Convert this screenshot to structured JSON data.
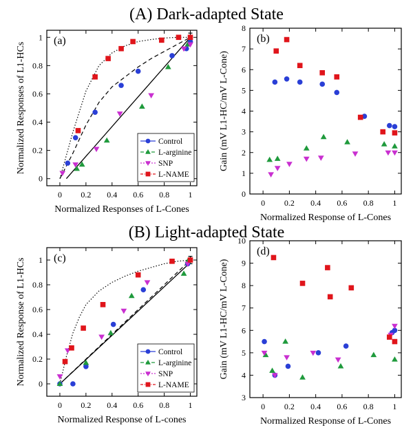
{
  "sections": [
    {
      "title": "(A) Dark-adapted State"
    },
    {
      "title": "(B) Light-adapted State"
    }
  ],
  "colors": {
    "control": "#2a3fd6",
    "larginine": "#1f9a3c",
    "snp": "#c92fd0",
    "lname": "#e0151b"
  },
  "chart_data": [
    {
      "type": "scatter",
      "panel_label": "(a)",
      "xlabel": "Normalized Responses of L-Cones",
      "ylabel": "Normalized Responses of L1-HCs",
      "xlim": [
        -0.1,
        1.05
      ],
      "ylim": [
        -0.05,
        1.05
      ],
      "xticks": [
        0,
        0.2,
        0.4,
        0.6,
        0.8,
        1
      ],
      "xtick_labels": [
        "0",
        "0.2",
        "0.4",
        "0.6",
        "0.8",
        "1"
      ],
      "yticks": [
        0,
        0.2,
        0.4,
        0.6,
        0.8,
        1
      ],
      "ytick_labels": [
        "0",
        "0.2",
        "0.4",
        "0.6",
        "0.8",
        "1"
      ],
      "grid": false,
      "legend": "bottom-right",
      "series": [
        {
          "name": "Control",
          "marker": "circle",
          "color": "#2a3fd6",
          "x": [
            0.06,
            0.12,
            0.27,
            0.47,
            0.6,
            0.86,
            0.97,
            1.0
          ],
          "y": [
            0.11,
            0.29,
            0.47,
            0.66,
            0.76,
            0.87,
            0.92,
            0.97
          ]
        },
        {
          "name": "L-arginine",
          "marker": "triangle-up",
          "color": "#1f9a3c",
          "x": [
            0.13,
            0.17,
            0.36,
            0.63,
            0.83,
            0.98
          ],
          "y": [
            0.07,
            0.1,
            0.27,
            0.51,
            0.79,
            0.95
          ]
        },
        {
          "name": "SNP",
          "marker": "triangle-down",
          "color": "#c92fd0",
          "x": [
            0.02,
            0.12,
            0.28,
            0.46,
            0.7,
            0.95,
            1.0
          ],
          "y": [
            0.04,
            0.1,
            0.21,
            0.46,
            0.59,
            0.92,
            0.95
          ]
        },
        {
          "name": "L-NAME",
          "marker": "square",
          "color": "#e0151b",
          "x": [
            0.14,
            0.27,
            0.37,
            0.47,
            0.56,
            0.78,
            0.91,
            1.0
          ],
          "y": [
            0.34,
            0.72,
            0.85,
            0.92,
            0.97,
            0.98,
            1.0,
            1.0
          ]
        }
      ],
      "fits": [
        {
          "style": "dotted",
          "x": [
            0.0,
            0.1,
            0.2,
            0.3,
            0.4,
            0.5,
            0.6,
            0.7,
            0.8,
            0.9,
            1.0
          ],
          "y": [
            0.0,
            0.33,
            0.62,
            0.8,
            0.89,
            0.94,
            0.97,
            0.985,
            0.995,
            1.0,
            1.0
          ]
        },
        {
          "style": "dashed",
          "x": [
            0.0,
            0.1,
            0.2,
            0.3,
            0.4,
            0.5,
            0.6,
            0.7,
            0.8,
            0.9,
            1.0
          ],
          "y": [
            0.0,
            0.18,
            0.38,
            0.54,
            0.65,
            0.72,
            0.79,
            0.85,
            0.9,
            0.95,
            1.0
          ]
        },
        {
          "style": "solid",
          "x": [
            0.05,
            1.0
          ],
          "y": [
            0.0,
            1.0
          ]
        }
      ],
      "error_bar": {
        "x": 1.0,
        "y": 1.0,
        "err": 0.03
      }
    },
    {
      "type": "scatter",
      "panel_label": "(b)",
      "xlabel": "Normalized Response of L-Cones",
      "ylabel": "Gain (mV L1-HC/mV L-Cone)",
      "xlim": [
        -0.1,
        1.05
      ],
      "ylim": [
        0,
        8
      ],
      "xticks": [
        0,
        0.2,
        0.4,
        0.6,
        0.8,
        1
      ],
      "xtick_labels": [
        "0",
        "0.2",
        "0.4",
        "0.6",
        "0.8",
        "1"
      ],
      "yticks": [
        0,
        1,
        2,
        3,
        4,
        5,
        6,
        7,
        8
      ],
      "ytick_labels": [
        "0",
        "1",
        "2",
        "3",
        "4",
        "5",
        "6",
        "7",
        "8"
      ],
      "grid": false,
      "series": [
        {
          "name": "Control",
          "marker": "circle",
          "color": "#2a3fd6",
          "x": [
            0.09,
            0.18,
            0.28,
            0.45,
            0.56,
            0.77,
            0.96,
            1.0
          ],
          "y": [
            5.4,
            5.55,
            5.4,
            5.3,
            4.9,
            3.75,
            3.3,
            3.25
          ]
        },
        {
          "name": "L-arginine",
          "marker": "triangle-up",
          "color": "#1f9a3c",
          "x": [
            0.05,
            0.11,
            0.33,
            0.46,
            0.64,
            0.92,
            1.0
          ],
          "y": [
            1.65,
            1.7,
            2.2,
            2.75,
            2.5,
            2.4,
            2.3
          ]
        },
        {
          "name": "SNP",
          "marker": "triangle-down",
          "color": "#c92fd0",
          "x": [
            0.06,
            0.11,
            0.2,
            0.33,
            0.44,
            0.7,
            0.95,
            1.0
          ],
          "y": [
            0.95,
            1.25,
            1.45,
            1.7,
            1.75,
            1.95,
            2.0,
            2.0
          ]
        },
        {
          "name": "L-NAME",
          "marker": "square",
          "color": "#e0151b",
          "x": [
            0.1,
            0.18,
            0.28,
            0.45,
            0.56,
            0.74,
            0.91,
            1.0
          ],
          "y": [
            6.9,
            7.45,
            6.2,
            5.85,
            5.65,
            3.7,
            3.0,
            2.95
          ]
        }
      ]
    },
    {
      "type": "scatter",
      "panel_label": "(c)",
      "xlabel": "Normalized Response of L-cones",
      "ylabel": "Normalized Response of L1-HCs",
      "xlim": [
        -0.1,
        1.05
      ],
      "ylim": [
        -0.1,
        1.1
      ],
      "xticks": [
        0,
        0.2,
        0.4,
        0.6,
        0.8,
        1
      ],
      "xtick_labels": [
        "0",
        "0.2",
        "0.4",
        "0.6",
        "0.8",
        "1"
      ],
      "yticks": [
        0,
        0.2,
        0.4,
        0.6,
        0.8,
        1
      ],
      "ytick_labels": [
        "0",
        "0.2",
        "0.4",
        "0.6",
        "0.8",
        "1"
      ],
      "grid": false,
      "legend": "bottom-right",
      "series": [
        {
          "name": "Control",
          "marker": "circle",
          "color": "#2a3fd6",
          "x": [
            0.0,
            0.1,
            0.2,
            0.41,
            0.64,
            0.98
          ],
          "y": [
            0.0,
            0.0,
            0.14,
            0.48,
            0.76,
            0.97
          ]
        },
        {
          "name": "L-arginine",
          "marker": "triangle-up",
          "color": "#1f9a3c",
          "x": [
            0.0,
            0.2,
            0.39,
            0.55,
            0.95,
            0.98
          ],
          "y": [
            0.0,
            0.17,
            0.41,
            0.71,
            0.89,
            0.99
          ]
        },
        {
          "name": "SNP",
          "marker": "triangle-down",
          "color": "#c92fd0",
          "x": [
            0.0,
            0.06,
            0.32,
            0.49,
            0.67,
            0.98
          ],
          "y": [
            0.06,
            0.27,
            0.38,
            0.59,
            0.82,
            0.97
          ]
        },
        {
          "name": "L-NAME",
          "marker": "square",
          "color": "#e0151b",
          "x": [
            0.04,
            0.09,
            0.18,
            0.33,
            0.6,
            0.86,
            1.0
          ],
          "y": [
            0.18,
            0.29,
            0.45,
            0.64,
            0.88,
            0.99,
            1.0
          ]
        }
      ],
      "fits": [
        {
          "style": "dotted",
          "x": [
            0.0,
            0.05,
            0.1,
            0.15,
            0.2,
            0.3,
            0.4,
            0.5,
            0.6,
            0.7,
            0.8,
            0.9,
            1.0
          ],
          "y": [
            0.0,
            0.22,
            0.41,
            0.54,
            0.64,
            0.75,
            0.82,
            0.87,
            0.91,
            0.94,
            0.97,
            0.99,
            1.0
          ]
        },
        {
          "style": "dashed",
          "x": [
            0.0,
            1.0
          ],
          "y": [
            0.0,
            1.0
          ]
        },
        {
          "style": "solid",
          "x": [
            0.0,
            1.0
          ],
          "y": [
            0.0,
            0.98
          ]
        }
      ],
      "error_bar": {
        "x": 1.0,
        "y": 1.0,
        "err": 0.03
      }
    },
    {
      "type": "scatter",
      "panel_label": "(d)",
      "xlabel": "Normalized Response of L-Cones",
      "ylabel": "Gain (mV L1-HC/mV L-Cone)",
      "xlim": [
        -0.1,
        1.05
      ],
      "ylim": [
        3,
        10
      ],
      "xticks": [
        0,
        0.2,
        0.4,
        0.6,
        0.8,
        1
      ],
      "xtick_labels": [
        "0",
        "0.2",
        "0.4",
        "0.6",
        "0.8",
        "1"
      ],
      "yticks": [
        3,
        4,
        5,
        6,
        7,
        8,
        9,
        10
      ],
      "ytick_labels": [
        "3",
        "4",
        "5",
        "6",
        "7",
        "8",
        "9",
        "10"
      ],
      "grid": false,
      "series": [
        {
          "name": "Control",
          "marker": "circle",
          "color": "#2a3fd6",
          "x": [
            0.01,
            0.09,
            0.19,
            0.42,
            0.63,
            0.98,
            1.0
          ],
          "y": [
            5.5,
            4.0,
            4.4,
            5.0,
            5.3,
            5.9,
            6.0
          ]
        },
        {
          "name": "L-arginine",
          "marker": "triangle-up",
          "color": "#1f9a3c",
          "x": [
            0.02,
            0.07,
            0.17,
            0.3,
            0.59,
            0.84,
            1.0
          ],
          "y": [
            4.9,
            4.2,
            5.5,
            3.9,
            4.4,
            4.9,
            4.7
          ]
        },
        {
          "name": "SNP",
          "marker": "triangle-down",
          "color": "#c92fd0",
          "x": [
            0.01,
            0.09,
            0.18,
            0.38,
            0.57,
            0.97,
            1.0
          ],
          "y": [
            5.0,
            4.0,
            4.8,
            5.0,
            4.7,
            5.8,
            6.2
          ]
        },
        {
          "name": "L-NAME",
          "marker": "square",
          "color": "#e0151b",
          "x": [
            0.08,
            0.3,
            0.49,
            0.51,
            0.67,
            0.96,
            1.0
          ],
          "y": [
            9.25,
            8.1,
            8.8,
            7.5,
            7.9,
            5.7,
            5.5
          ]
        }
      ]
    }
  ]
}
